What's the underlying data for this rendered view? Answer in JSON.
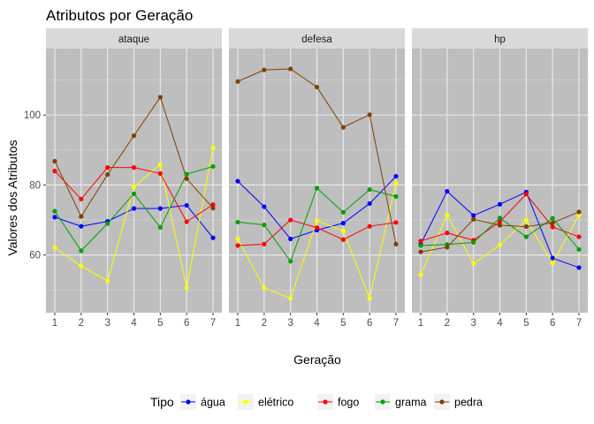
{
  "chart_data": {
    "type": "line",
    "title": "Atributos por Geração",
    "xlabel": "Geração",
    "ylabel": "Valores dos Atributos",
    "x": [
      1,
      2,
      3,
      4,
      5,
      6,
      7
    ],
    "x_ticks": [
      "1",
      "2",
      "3",
      "4",
      "5",
      "6",
      "7"
    ],
    "ylim": [
      43.5,
      119
    ],
    "y_ticks": [
      60,
      80,
      100
    ],
    "grid": true,
    "legend": {
      "title": "Tipo",
      "position": "bottom"
    },
    "panels": [
      {
        "label": "ataque",
        "series": [
          {
            "name": "água",
            "color": "#0000FF",
            "values": [
              70.8,
              68.2,
              69.6,
              73.3,
              73.3,
              74.2,
              64.9
            ]
          },
          {
            "name": "elétrico",
            "color": "#FFFF00",
            "values": [
              62.1,
              56.8,
              52.6,
              79.5,
              85.8,
              50.6,
              90.7
            ]
          },
          {
            "name": "fogo",
            "color": "#FF0000",
            "values": [
              84.0,
              76.0,
              85.0,
              85.0,
              83.3,
              69.5,
              74.4
            ]
          },
          {
            "name": "grama",
            "color": "#00A000",
            "values": [
              72.5,
              61.2,
              69.0,
              77.5,
              67.9,
              83.1,
              85.3
            ]
          },
          {
            "name": "pedra",
            "color": "#804000",
            "values": [
              86.8,
              71.0,
              83.0,
              94.1,
              105.1,
              81.8,
              73.4
            ]
          }
        ]
      },
      {
        "label": "defesa",
        "series": [
          {
            "name": "água",
            "color": "#0000FF",
            "values": [
              81.1,
              73.8,
              64.6,
              67.1,
              69.1,
              74.7,
              82.5
            ]
          },
          {
            "name": "elétrico",
            "color": "#FFFF00",
            "values": [
              64.6,
              50.6,
              47.6,
              69.8,
              66.9,
              47.6,
              80.5
            ]
          },
          {
            "name": "fogo",
            "color": "#FF0000",
            "values": [
              62.7,
              63.1,
              70.0,
              67.8,
              64.4,
              68.2,
              69.3
            ]
          },
          {
            "name": "grama",
            "color": "#00A000",
            "values": [
              69.4,
              68.6,
              58.2,
              79.1,
              72.2,
              78.7,
              76.7
            ]
          },
          {
            "name": "pedra",
            "color": "#804000",
            "values": [
              109.6,
              112.9,
              113.2,
              108.0,
              96.5,
              100.1,
              63.1
            ]
          }
        ]
      },
      {
        "label": "hp",
        "series": [
          {
            "name": "água",
            "color": "#0000FF",
            "values": [
              63.1,
              78.2,
              71.3,
              74.5,
              78.0,
              59.1,
              56.4
            ]
          },
          {
            "name": "elétrico",
            "color": "#FFFF00",
            "values": [
              54.4,
              71.4,
              57.5,
              62.9,
              69.9,
              57.7,
              71.4
            ]
          },
          {
            "name": "fogo",
            "color": "#FF0000",
            "values": [
              64.0,
              66.3,
              64.2,
              69.5,
              77.4,
              68.0,
              65.2
            ]
          },
          {
            "name": "grama",
            "color": "#00A000",
            "values": [
              62.7,
              63.0,
              63.6,
              70.6,
              65.2,
              70.5,
              61.6
            ]
          },
          {
            "name": "pedra",
            "color": "#804000",
            "values": [
              60.9,
              62.2,
              70.2,
              68.5,
              68.1,
              69.2,
              72.3
            ]
          }
        ]
      }
    ]
  }
}
